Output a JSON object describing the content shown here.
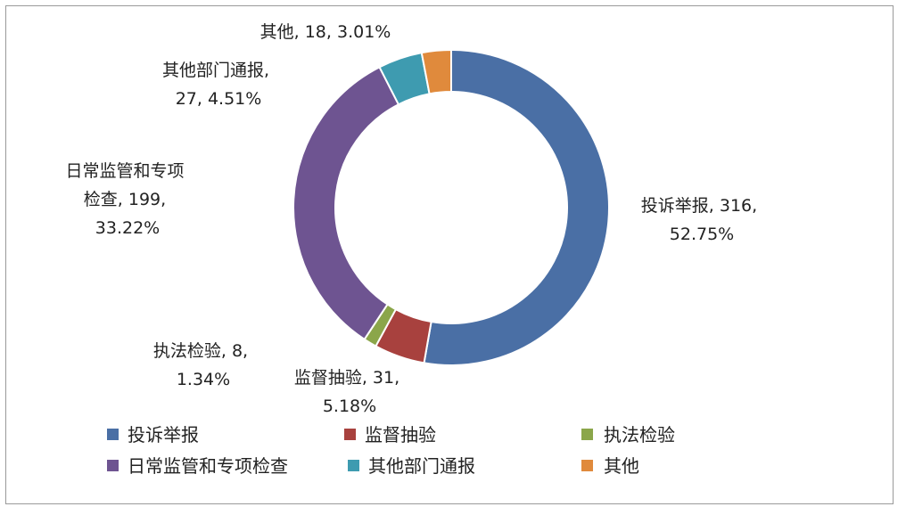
{
  "chart_data": {
    "type": "pie",
    "donut": true,
    "legend_position": "bottom",
    "categories": [
      "投诉举报",
      "监督抽验",
      "执法检验",
      "日常监管和专项检查",
      "其他部门通报",
      "其他"
    ],
    "values": [
      316,
      31,
      8,
      199,
      27,
      18
    ],
    "percents": [
      "52.75%",
      "5.18%",
      "1.34%",
      "33.22%",
      "4.51%",
      "3.01%"
    ],
    "colors": [
      "#4A6FA5",
      "#A8413E",
      "#8BA64A",
      "#6E5491",
      "#3E9BB0",
      "#E08A3C"
    ],
    "data_labels": [
      [
        "投诉举报, 316,",
        "52.75%"
      ],
      [
        "监督抽验, 31,",
        "5.18%"
      ],
      [
        "执法检验, 8,",
        "1.34%"
      ],
      [
        "日常监管和专项",
        "检查, 199,",
        "33.22%"
      ],
      [
        "其他部门通报,",
        "27, 4.51%"
      ],
      [
        "其他, 18, 3.01%"
      ]
    ]
  }
}
